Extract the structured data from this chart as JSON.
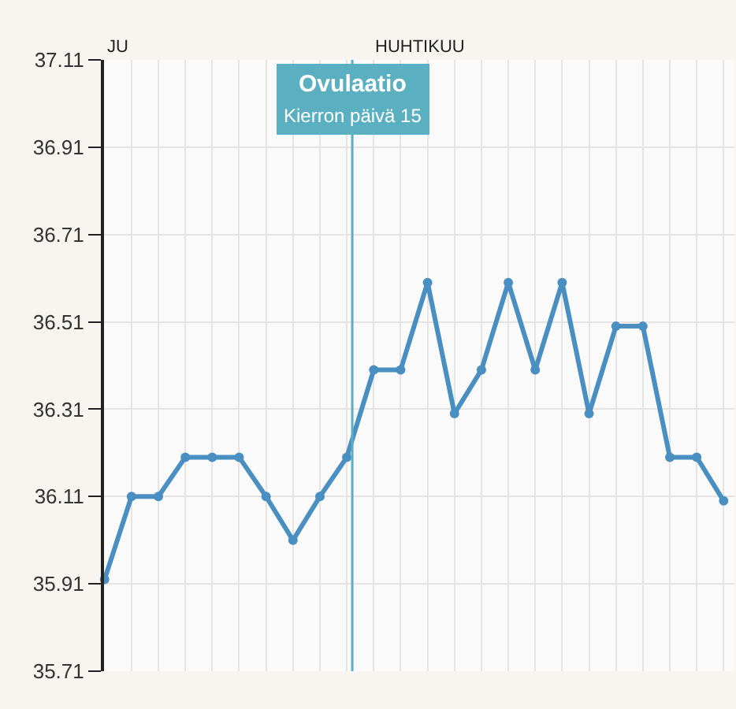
{
  "chart_data": {
    "type": "line",
    "categories": [
      null,
      null,
      null,
      null,
      null,
      null,
      null,
      null,
      null,
      null,
      null,
      null,
      null,
      null,
      null,
      null,
      null,
      null,
      null,
      null,
      null,
      null,
      null,
      null
    ],
    "series": [
      {
        "color": "#4a8fc2",
        "values": [
          35.92,
          36.11,
          36.11,
          36.2,
          36.2,
          36.2,
          36.11,
          36.01,
          36.11,
          36.2,
          36.4,
          36.4,
          36.6,
          36.3,
          36.4,
          36.6,
          36.4,
          36.6,
          36.3,
          36.5,
          36.5,
          36.2,
          36.2,
          36.1
        ]
      }
    ],
    "ylim": [
      35.71,
      37.11
    ],
    "yticks": [
      35.71,
      35.91,
      36.11,
      36.31,
      36.51,
      36.71,
      36.91,
      37.11
    ],
    "tick_labels": "y",
    "grid": true,
    "marker": "circle",
    "line_style": "solid",
    "annotations": [
      "JU",
      "HUHTIKUU",
      "Ovulaatio\nKierron päivä 15"
    ]
  }
}
